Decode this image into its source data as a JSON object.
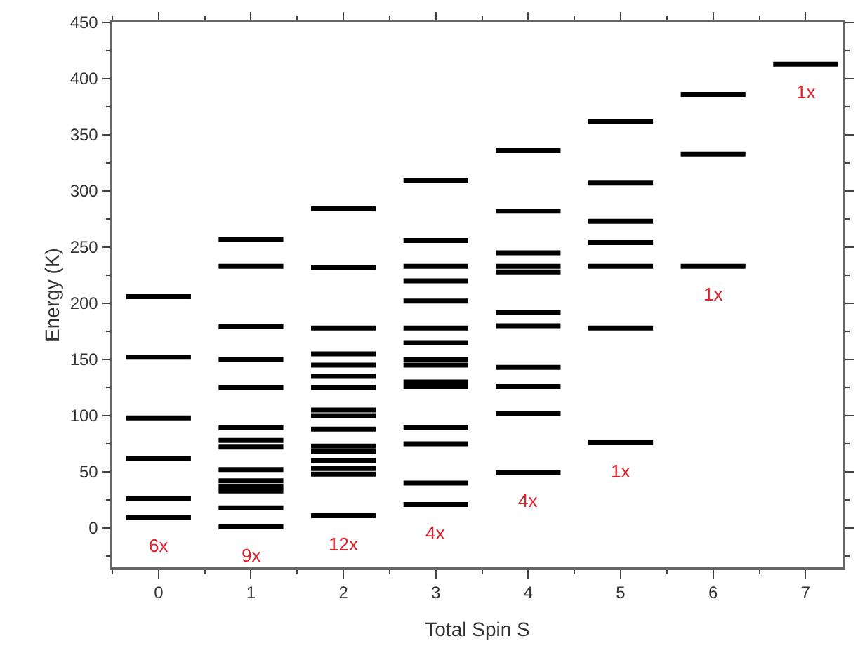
{
  "chart_data": {
    "type": "line",
    "xlabel": "Total Spin S",
    "ylabel": "Energy (K)",
    "series": [
      {
        "color": "#000000",
        "x": [
          -0.35,
          0.35
        ],
        "values": [
          206,
          206
        ]
      },
      {
        "color": "#000000",
        "x": [
          -0.35,
          0.35
        ],
        "values": [
          152,
          152
        ]
      },
      {
        "color": "#000000",
        "x": [
          -0.35,
          0.35
        ],
        "values": [
          98,
          98
        ]
      },
      {
        "color": "#000000",
        "x": [
          -0.35,
          0.35
        ],
        "values": [
          62,
          62
        ]
      },
      {
        "color": "#000000",
        "x": [
          -0.35,
          0.35
        ],
        "values": [
          26,
          26
        ]
      },
      {
        "color": "#000000",
        "x": [
          -0.35,
          0.35
        ],
        "values": [
          9,
          9
        ]
      },
      {
        "color": "#000000",
        "x": [
          0.65,
          1.35
        ],
        "values": [
          257,
          257
        ]
      },
      {
        "color": "#000000",
        "x": [
          0.65,
          1.35
        ],
        "values": [
          233,
          233
        ]
      },
      {
        "color": "#000000",
        "x": [
          0.65,
          1.35
        ],
        "values": [
          179,
          179
        ]
      },
      {
        "color": "#000000",
        "x": [
          0.65,
          1.35
        ],
        "values": [
          150,
          150
        ]
      },
      {
        "color": "#000000",
        "x": [
          0.65,
          1.35
        ],
        "values": [
          125,
          125
        ]
      },
      {
        "color": "#000000",
        "x": [
          0.65,
          1.35
        ],
        "values": [
          89,
          89
        ]
      },
      {
        "color": "#000000",
        "x": [
          0.65,
          1.35
        ],
        "values": [
          78,
          78
        ]
      },
      {
        "color": "#000000",
        "x": [
          0.65,
          1.35
        ],
        "values": [
          72,
          72
        ]
      },
      {
        "color": "#000000",
        "x": [
          0.65,
          1.35
        ],
        "values": [
          52,
          52
        ]
      },
      {
        "color": "#000000",
        "x": [
          0.65,
          1.35
        ],
        "values": [
          42,
          42
        ]
      },
      {
        "color": "#000000",
        "x": [
          0.65,
          1.35
        ],
        "values": [
          37,
          37
        ]
      },
      {
        "color": "#000000",
        "x": [
          0.65,
          1.35
        ],
        "values": [
          33,
          33
        ]
      },
      {
        "color": "#000000",
        "x": [
          0.65,
          1.35
        ],
        "values": [
          18,
          18
        ]
      },
      {
        "color": "#000000",
        "x": [
          0.65,
          1.35
        ],
        "values": [
          1,
          1
        ]
      },
      {
        "color": "#000000",
        "x": [
          1.65,
          2.35
        ],
        "values": [
          284,
          284
        ]
      },
      {
        "color": "#000000",
        "x": [
          1.65,
          2.35
        ],
        "values": [
          232,
          232
        ]
      },
      {
        "color": "#000000",
        "x": [
          1.65,
          2.35
        ],
        "values": [
          178,
          178
        ]
      },
      {
        "color": "#000000",
        "x": [
          1.65,
          2.35
        ],
        "values": [
          155,
          155
        ]
      },
      {
        "color": "#000000",
        "x": [
          1.65,
          2.35
        ],
        "values": [
          145,
          145
        ]
      },
      {
        "color": "#000000",
        "x": [
          1.65,
          2.35
        ],
        "values": [
          135,
          135
        ]
      },
      {
        "color": "#000000",
        "x": [
          1.65,
          2.35
        ],
        "values": [
          125,
          125
        ]
      },
      {
        "color": "#000000",
        "x": [
          1.65,
          2.35
        ],
        "values": [
          105,
          105
        ]
      },
      {
        "color": "#000000",
        "x": [
          1.65,
          2.35
        ],
        "values": [
          100,
          100
        ]
      },
      {
        "color": "#000000",
        "x": [
          1.65,
          2.35
        ],
        "values": [
          88,
          88
        ]
      },
      {
        "color": "#000000",
        "x": [
          1.65,
          2.35
        ],
        "values": [
          73,
          73
        ]
      },
      {
        "color": "#000000",
        "x": [
          1.65,
          2.35
        ],
        "values": [
          68,
          68
        ]
      },
      {
        "color": "#000000",
        "x": [
          1.65,
          2.35
        ],
        "values": [
          60,
          60
        ]
      },
      {
        "color": "#000000",
        "x": [
          1.65,
          2.35
        ],
        "values": [
          53,
          53
        ]
      },
      {
        "color": "#000000",
        "x": [
          1.65,
          2.35
        ],
        "values": [
          48,
          48
        ]
      },
      {
        "color": "#000000",
        "x": [
          1.65,
          2.35
        ],
        "values": [
          11,
          11
        ]
      },
      {
        "color": "#000000",
        "x": [
          2.65,
          3.35
        ],
        "values": [
          309,
          309
        ]
      },
      {
        "color": "#000000",
        "x": [
          2.65,
          3.35
        ],
        "values": [
          256,
          256
        ]
      },
      {
        "color": "#000000",
        "x": [
          2.65,
          3.35
        ],
        "values": [
          233,
          233
        ]
      },
      {
        "color": "#000000",
        "x": [
          2.65,
          3.35
        ],
        "values": [
          220,
          220
        ]
      },
      {
        "color": "#000000",
        "x": [
          2.65,
          3.35
        ],
        "values": [
          202,
          202
        ]
      },
      {
        "color": "#000000",
        "x": [
          2.65,
          3.35
        ],
        "values": [
          178,
          178
        ]
      },
      {
        "color": "#000000",
        "x": [
          2.65,
          3.35
        ],
        "values": [
          165,
          165
        ]
      },
      {
        "color": "#000000",
        "x": [
          2.65,
          3.35
        ],
        "values": [
          150,
          150
        ]
      },
      {
        "color": "#000000",
        "x": [
          2.65,
          3.35
        ],
        "values": [
          145,
          145
        ]
      },
      {
        "color": "#000000",
        "x": [
          2.65,
          3.35
        ],
        "values": [
          130,
          130
        ]
      },
      {
        "color": "#000000",
        "x": [
          2.65,
          3.35
        ],
        "values": [
          126,
          126
        ]
      },
      {
        "color": "#000000",
        "x": [
          2.65,
          3.35
        ],
        "values": [
          89,
          89
        ]
      },
      {
        "color": "#000000",
        "x": [
          2.65,
          3.35
        ],
        "values": [
          75,
          75
        ]
      },
      {
        "color": "#000000",
        "x": [
          2.65,
          3.35
        ],
        "values": [
          40,
          40
        ]
      },
      {
        "color": "#000000",
        "x": [
          2.65,
          3.35
        ],
        "values": [
          21,
          21
        ]
      },
      {
        "color": "#000000",
        "x": [
          3.65,
          4.35
        ],
        "values": [
          336,
          336
        ]
      },
      {
        "color": "#000000",
        "x": [
          3.65,
          4.35
        ],
        "values": [
          282,
          282
        ]
      },
      {
        "color": "#000000",
        "x": [
          3.65,
          4.35
        ],
        "values": [
          245,
          245
        ]
      },
      {
        "color": "#000000",
        "x": [
          3.65,
          4.35
        ],
        "values": [
          233,
          233
        ]
      },
      {
        "color": "#000000",
        "x": [
          3.65,
          4.35
        ],
        "values": [
          228,
          228
        ]
      },
      {
        "color": "#000000",
        "x": [
          3.65,
          4.35
        ],
        "values": [
          192,
          192
        ]
      },
      {
        "color": "#000000",
        "x": [
          3.65,
          4.35
        ],
        "values": [
          180,
          180
        ]
      },
      {
        "color": "#000000",
        "x": [
          3.65,
          4.35
        ],
        "values": [
          143,
          143
        ]
      },
      {
        "color": "#000000",
        "x": [
          3.65,
          4.35
        ],
        "values": [
          126,
          126
        ]
      },
      {
        "color": "#000000",
        "x": [
          3.65,
          4.35
        ],
        "values": [
          102,
          102
        ]
      },
      {
        "color": "#000000",
        "x": [
          3.65,
          4.35
        ],
        "values": [
          49,
          49
        ]
      },
      {
        "color": "#000000",
        "x": [
          4.65,
          5.35
        ],
        "values": [
          362,
          362
        ]
      },
      {
        "color": "#000000",
        "x": [
          4.65,
          5.35
        ],
        "values": [
          307,
          307
        ]
      },
      {
        "color": "#000000",
        "x": [
          4.65,
          5.35
        ],
        "values": [
          273,
          273
        ]
      },
      {
        "color": "#000000",
        "x": [
          4.65,
          5.35
        ],
        "values": [
          254,
          254
        ]
      },
      {
        "color": "#000000",
        "x": [
          4.65,
          5.35
        ],
        "values": [
          233,
          233
        ]
      },
      {
        "color": "#000000",
        "x": [
          4.65,
          5.35
        ],
        "values": [
          178,
          178
        ]
      },
      {
        "color": "#000000",
        "x": [
          4.65,
          5.35
        ],
        "values": [
          76,
          76
        ]
      },
      {
        "color": "#000000",
        "x": [
          5.65,
          6.35
        ],
        "values": [
          386,
          386
        ]
      },
      {
        "color": "#000000",
        "x": [
          5.65,
          6.35
        ],
        "values": [
          333,
          333
        ]
      },
      {
        "color": "#000000",
        "x": [
          5.65,
          6.35
        ],
        "values": [
          233,
          233
        ]
      },
      {
        "color": "#000000",
        "x": [
          6.65,
          7.35
        ],
        "values": [
          413,
          413
        ]
      }
    ],
    "xlim": [
      -0.5,
      7.4
    ],
    "xticks": [
      0,
      1,
      2,
      3,
      4,
      5,
      6,
      7
    ],
    "ylim": [
      -35,
      450
    ],
    "yticks": [
      0,
      50,
      100,
      150,
      200,
      250,
      300,
      350,
      400,
      450
    ],
    "annotations": [
      "6x",
      "9x",
      "12x",
      "4x",
      "4x",
      "1x",
      "1x",
      "1x"
    ]
  }
}
